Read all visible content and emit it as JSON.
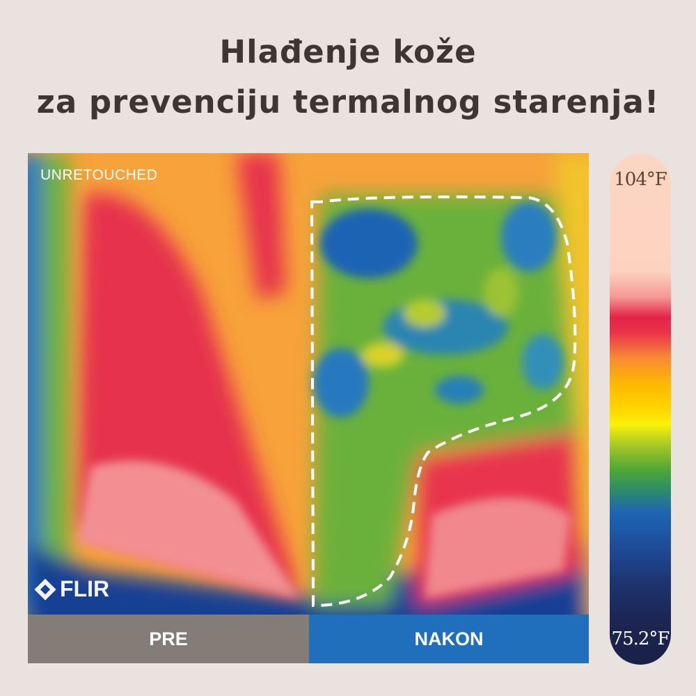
{
  "title": {
    "line1": "Hlađenje kože",
    "line2": "za prevenciju termalnog starenja!"
  },
  "image": {
    "watermark": "UNRETOUCHED",
    "logo": "FLIR"
  },
  "labels": {
    "before": "PRE",
    "after": "NAKON"
  },
  "scale": {
    "max": "104°F",
    "min": "75.2°F"
  },
  "colors": {
    "background": "#e9e2de",
    "title": "#3e3632",
    "before_bar": "#847c77",
    "after_bar": "#1f6fbd"
  }
}
